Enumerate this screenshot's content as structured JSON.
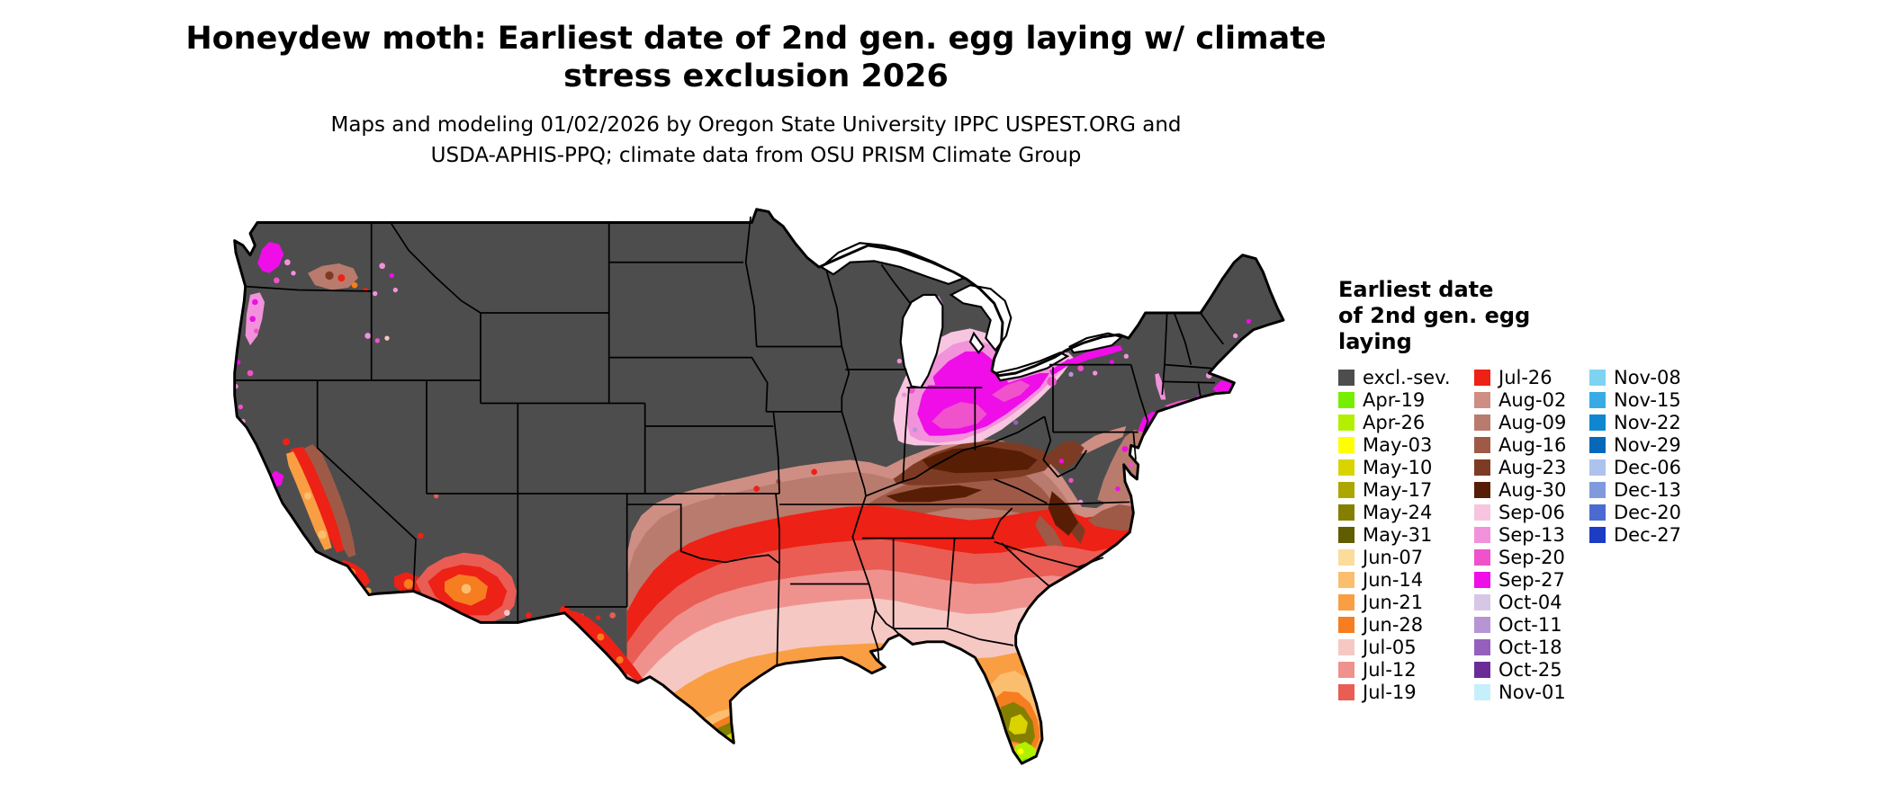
{
  "title": {
    "lines": [
      "Honeydew moth: Earliest date of 2nd gen. egg laying w/ climate",
      "stress exclusion 2026"
    ]
  },
  "subtitle": {
    "lines": [
      "Maps and modeling 01/02/2026 by Oregon State University IPPC USPEST.ORG and",
      "USDA-APHIS-PPQ; climate data from OSU PRISM Climate Group"
    ]
  },
  "legend": {
    "title_lines": [
      "Earliest date",
      "of 2nd gen. egg",
      "laying"
    ],
    "columns": [
      {
        "entries": [
          {
            "label": "excl.-sev.",
            "color": "#4D4D4D"
          },
          {
            "label": "Apr-19",
            "color": "#76EE00"
          },
          {
            "label": "Apr-26",
            "color": "#B3F000"
          },
          {
            "label": "May-03",
            "color": "#FFFF00"
          },
          {
            "label": "May-10",
            "color": "#D9D400"
          },
          {
            "label": "May-17",
            "color": "#ABA600"
          },
          {
            "label": "May-24",
            "color": "#847F00"
          },
          {
            "label": "May-31",
            "color": "#605C00"
          },
          {
            "label": "Jun-07",
            "color": "#FBDC9B"
          },
          {
            "label": "Jun-14",
            "color": "#FBBE6E"
          },
          {
            "label": "Jun-21",
            "color": "#FA9E43"
          },
          {
            "label": "Jun-28",
            "color": "#F67D20"
          },
          {
            "label": "Jul-05",
            "color": "#F6C8C3"
          },
          {
            "label": "Jul-12",
            "color": "#EF928E"
          },
          {
            "label": "Jul-19",
            "color": "#E95D55"
          }
        ]
      },
      {
        "entries": [
          {
            "label": "Jul-26",
            "color": "#ED2115"
          },
          {
            "label": "Aug-02",
            "color": "#CE8E84"
          },
          {
            "label": "Aug-09",
            "color": "#B97B6D"
          },
          {
            "label": "Aug-16",
            "color": "#9F5A47"
          },
          {
            "label": "Aug-23",
            "color": "#7E3B24"
          },
          {
            "label": "Aug-30",
            "color": "#581E05"
          },
          {
            "label": "Sep-06",
            "color": "#F7C5E0"
          },
          {
            "label": "Sep-13",
            "color": "#F292DB"
          },
          {
            "label": "Sep-20",
            "color": "#EF52CB"
          },
          {
            "label": "Sep-27",
            "color": "#EF0DE8"
          },
          {
            "label": "Oct-04",
            "color": "#D7C7E6"
          },
          {
            "label": "Oct-11",
            "color": "#B795D5"
          },
          {
            "label": "Oct-18",
            "color": "#9560BC"
          },
          {
            "label": "Oct-25",
            "color": "#6A2C96"
          },
          {
            "label": "Nov-01",
            "color": "#C5EFFB"
          }
        ]
      },
      {
        "entries": [
          {
            "label": "Nov-08",
            "color": "#7ED3F3"
          },
          {
            "label": "Nov-15",
            "color": "#38ABE6"
          },
          {
            "label": "Nov-22",
            "color": "#0E86D0"
          },
          {
            "label": "Nov-29",
            "color": "#0668B8"
          },
          {
            "label": "Dec-06",
            "color": "#AEC3EC"
          },
          {
            "label": "Dec-13",
            "color": "#7F9BDE"
          },
          {
            "label": "Dec-20",
            "color": "#4C6BD0"
          },
          {
            "label": "Dec-27",
            "color": "#1C3CC4"
          }
        ]
      }
    ]
  },
  "map": {
    "base_color": "#4D4D4D"
  }
}
